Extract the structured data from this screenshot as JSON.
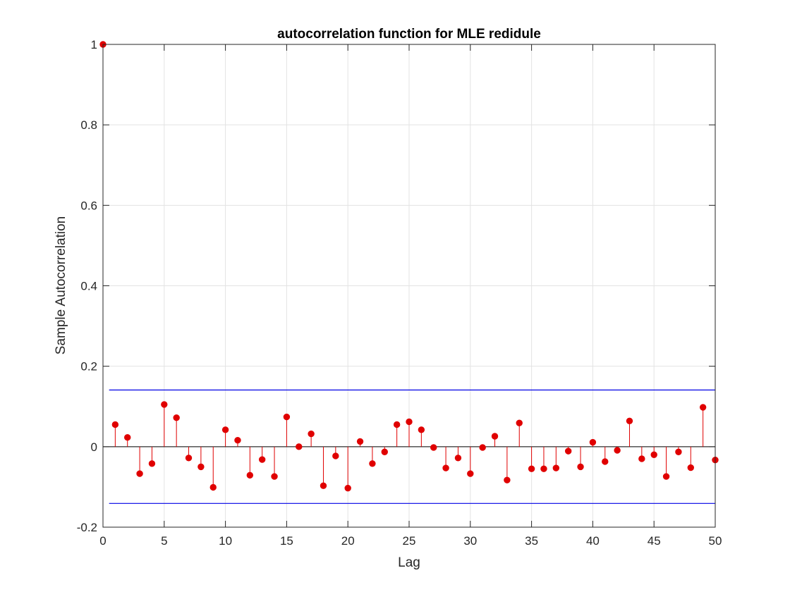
{
  "chart_data": {
    "type": "stem",
    "title": "autocorrelation function for MLE redidule",
    "xlabel": "Lag",
    "ylabel": "Sample Autocorrelation",
    "xlim": [
      0,
      50
    ],
    "ylim": [
      -0.2,
      1
    ],
    "xticks": [
      0,
      5,
      10,
      15,
      20,
      25,
      30,
      35,
      40,
      45,
      50
    ],
    "yticks": [
      -0.2,
      0,
      0.2,
      0.4,
      0.6,
      0.8,
      1
    ],
    "grid": true,
    "series": [
      {
        "x": [
          0,
          1,
          2,
          3,
          4,
          5,
          6,
          7,
          8,
          9,
          10,
          11,
          12,
          13,
          14,
          15,
          16,
          17,
          18,
          19,
          20,
          21,
          22,
          23,
          24,
          25,
          26,
          27,
          28,
          29,
          30,
          31,
          32,
          33,
          34,
          35,
          36,
          37,
          38,
          39,
          40,
          41,
          42,
          43,
          44,
          45,
          46,
          47,
          48,
          49,
          50
        ],
        "values": [
          1.0,
          0.055,
          0.023,
          -0.067,
          -0.042,
          0.105,
          0.072,
          -0.028,
          -0.05,
          -0.101,
          0.042,
          0.016,
          -0.071,
          -0.032,
          -0.074,
          0.074,
          0.0,
          0.032,
          -0.097,
          -0.023,
          -0.103,
          0.013,
          -0.042,
          -0.013,
          0.055,
          0.062,
          0.042,
          -0.002,
          -0.053,
          -0.028,
          -0.067,
          -0.002,
          0.026,
          -0.083,
          0.059,
          -0.055,
          -0.055,
          -0.053,
          -0.011,
          -0.05,
          0.011,
          -0.037,
          -0.009,
          0.064,
          -0.03,
          -0.02,
          -0.074,
          -0.013,
          -0.052,
          0.098,
          -0.033
        ],
        "color": "#e00000"
      }
    ],
    "bounds": [
      {
        "value": 0.141,
        "color": "#0000e6"
      },
      {
        "value": -0.141,
        "color": "#0000e6"
      }
    ]
  }
}
